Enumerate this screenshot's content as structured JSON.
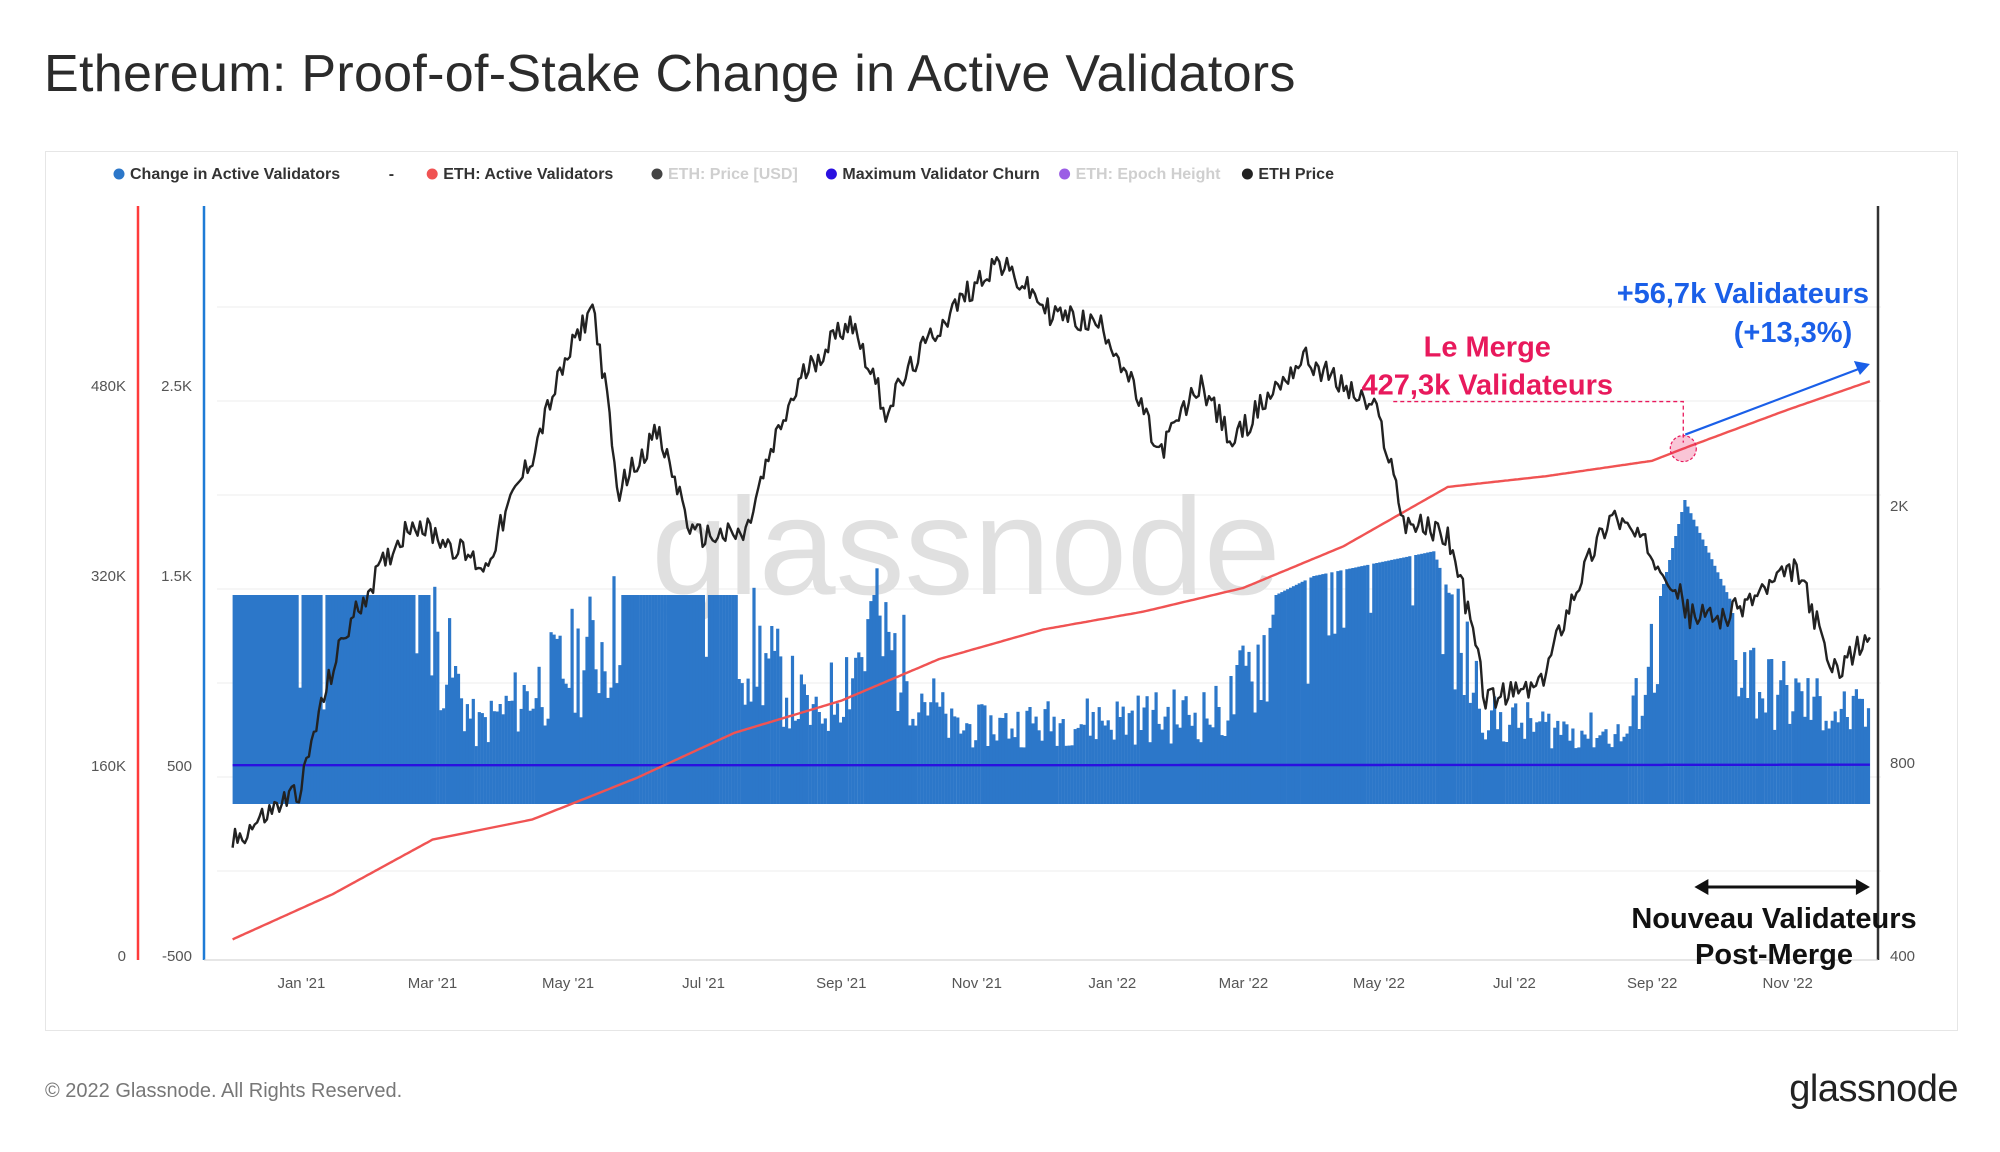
{
  "title": "Ethereum: Proof-of-Stake Change in Active Validators",
  "footer": {
    "copyright": "© 2022 Glassnode. All Rights Reserved.",
    "logo": "glassnode"
  },
  "watermark": "glassnode",
  "colors": {
    "change_bars": "#2c77c9",
    "active_validators": "#f05353",
    "validator_churn": "#2a10e0",
    "eth_price": "#222222",
    "merge_annotation": "#e8195c",
    "growth_annotation": "#1a5fe8",
    "left_axis_red": "#ff3b3b",
    "left_axis_blue": "#1e7bd6"
  },
  "legend": [
    {
      "label": "Change in Active Validators",
      "color": "#2c77c9",
      "muted": false
    },
    {
      "label": "-",
      "color": null,
      "muted": false
    },
    {
      "label": "ETH: Active Validators",
      "color": "#f05353",
      "muted": false
    },
    {
      "label": "ETH: Price [USD]",
      "color": "#444444",
      "muted": true
    },
    {
      "label": "Maximum Validator Churn",
      "color": "#2a10e0",
      "muted": false
    },
    {
      "label": "ETH: Epoch Height",
      "color": "#9b5de5",
      "muted": true
    },
    {
      "label": "ETH Price",
      "color": "#222222",
      "muted": false
    }
  ],
  "annotations": {
    "merge_line1": "Le Merge",
    "merge_line2": "427,3k Validateurs",
    "growth_line1": "+56,7k Validateurs",
    "growth_line2": "(+13,3%)",
    "post_merge_line1": "Nouveau Validateurs",
    "post_merge_line2": "Post-Merge"
  },
  "chart_data": {
    "type": "line",
    "x_tick_labels": [
      "Jan '21",
      "Mar '21",
      "May '21",
      "Jul '21",
      "Sep '21",
      "Nov '21",
      "Jan '22",
      "Mar '22",
      "May '22",
      "Jul '22",
      "Sep '22",
      "Nov '22"
    ],
    "axes": {
      "active_validators_ticks": [
        "0",
        "160K",
        "320K",
        "480K"
      ],
      "change_ticks": [
        "-500",
        "500",
        "1.5K",
        "2.5K"
      ],
      "price_ticks": [
        "400",
        "800",
        "2K"
      ],
      "price_scale": "log"
    },
    "series": [
      {
        "name": "ETH: Active Validators",
        "axis": "left",
        "points": [
          [
            "2020-12-01",
            14000
          ],
          [
            "2021-01-15",
            52000
          ],
          [
            "2021-03-01",
            98000
          ],
          [
            "2021-04-15",
            115000
          ],
          [
            "2021-06-01",
            150000
          ],
          [
            "2021-07-15",
            188000
          ],
          [
            "2021-09-01",
            215000
          ],
          [
            "2021-10-15",
            250000
          ],
          [
            "2021-12-01",
            275000
          ],
          [
            "2022-01-15",
            290000
          ],
          [
            "2022-03-01",
            310000
          ],
          [
            "2022-04-15",
            345000
          ],
          [
            "2022-06-01",
            395000
          ],
          [
            "2022-07-15",
            404000
          ],
          [
            "2022-09-01",
            417000
          ],
          [
            "2022-09-15",
            427300
          ],
          [
            "2022-11-01",
            460000
          ],
          [
            "2022-12-08",
            484000
          ]
        ]
      },
      {
        "name": "Maximum Validator Churn",
        "axis": "middle",
        "points": [
          [
            "2020-12-01",
            4
          ],
          [
            "2021-12-01",
            4
          ],
          [
            "2022-02-01",
            5
          ],
          [
            "2022-04-01",
            5
          ],
          [
            "2022-06-01",
            6
          ],
          [
            "2022-09-01",
            6
          ],
          [
            "2022-12-08",
            7
          ]
        ]
      },
      {
        "name": "ETH Price",
        "axis": "right",
        "points": [
          [
            "2020-12-01",
            600
          ],
          [
            "2021-01-01",
            730
          ],
          [
            "2021-01-20",
            1250
          ],
          [
            "2021-02-20",
            1900
          ],
          [
            "2021-03-25",
            1600
          ],
          [
            "2021-04-15",
            2400
          ],
          [
            "2021-05-12",
            4100
          ],
          [
            "2021-05-23",
            2100
          ],
          [
            "2021-06-10",
            2600
          ],
          [
            "2021-06-26",
            1800
          ],
          [
            "2021-07-20",
            1800
          ],
          [
            "2021-08-15",
            3200
          ],
          [
            "2021-09-05",
            3900
          ],
          [
            "2021-09-21",
            2800
          ],
          [
            "2021-10-10",
            3600
          ],
          [
            "2021-11-10",
            4800
          ],
          [
            "2021-12-04",
            4000
          ],
          [
            "2021-12-28",
            3800
          ],
          [
            "2022-01-22",
            2400
          ],
          [
            "2022-02-10",
            3100
          ],
          [
            "2022-02-24",
            2500
          ],
          [
            "2022-03-28",
            3400
          ],
          [
            "2022-04-30",
            2800
          ],
          [
            "2022-05-12",
            1900
          ],
          [
            "2022-06-01",
            1800
          ],
          [
            "2022-06-18",
            1000
          ],
          [
            "2022-07-13",
            1050
          ],
          [
            "2022-08-14",
            1950
          ],
          [
            "2022-09-07",
            1600
          ],
          [
            "2022-09-18",
            1350
          ],
          [
            "2022-10-05",
            1350
          ],
          [
            "2022-11-05",
            1600
          ],
          [
            "2022-11-21",
            1100
          ],
          [
            "2022-12-08",
            1250
          ]
        ]
      },
      {
        "name": "Change in Active Validators",
        "axis": "middle",
        "type": "bar",
        "points": [
          [
            "2020-12-01",
            900
          ],
          [
            "2021-02-28",
            900
          ],
          [
            "2021-03-20",
            240
          ],
          [
            "2021-05-25",
            900
          ],
          [
            "2021-07-15",
            900
          ],
          [
            "2021-08-20",
            300
          ],
          [
            "2021-09-15",
            900
          ],
          [
            "2021-10-20",
            250
          ],
          [
            "2021-12-20",
            300
          ],
          [
            "2022-02-20",
            350
          ],
          [
            "2022-03-15",
            900
          ],
          [
            "2022-04-01",
            1000
          ],
          [
            "2022-05-25",
            1130
          ],
          [
            "2022-06-20",
            300
          ],
          [
            "2022-08-20",
            200
          ],
          [
            "2022-09-15",
            1400
          ],
          [
            "2022-10-20",
            500
          ],
          [
            "2022-12-08",
            300
          ]
        ]
      }
    ],
    "grid": true,
    "legend_position": "top-left",
    "watermark": "glassnode"
  }
}
